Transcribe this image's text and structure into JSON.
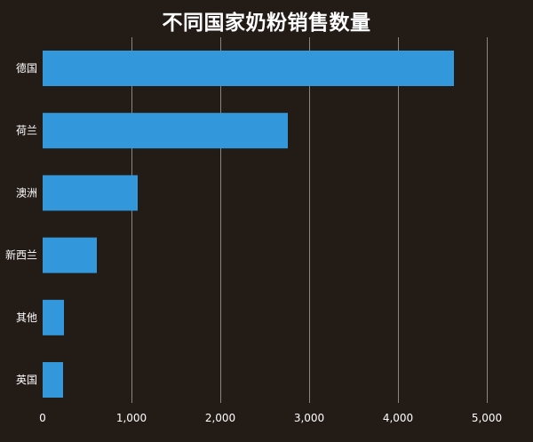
{
  "chart_data": {
    "type": "bar",
    "orientation": "horizontal",
    "title": "不同国家奶粉销售数量",
    "categories": [
      "德国",
      "荷兰",
      "澳洲",
      "新西兰",
      "其他",
      "英国"
    ],
    "values": [
      4630,
      2760,
      1070,
      610,
      240,
      230
    ],
    "xlim": [
      0,
      5000
    ],
    "xticks": [
      "0",
      "1,000",
      "2,000",
      "3,000",
      "4,000",
      "5,000"
    ],
    "xtick_values": [
      0,
      1000,
      2000,
      3000,
      4000,
      5000
    ],
    "grid": true,
    "legend": "none"
  },
  "colors": {
    "background": "#231b16",
    "bar": "#3398db",
    "grid": "#8a8580",
    "text": "#ffffff"
  }
}
